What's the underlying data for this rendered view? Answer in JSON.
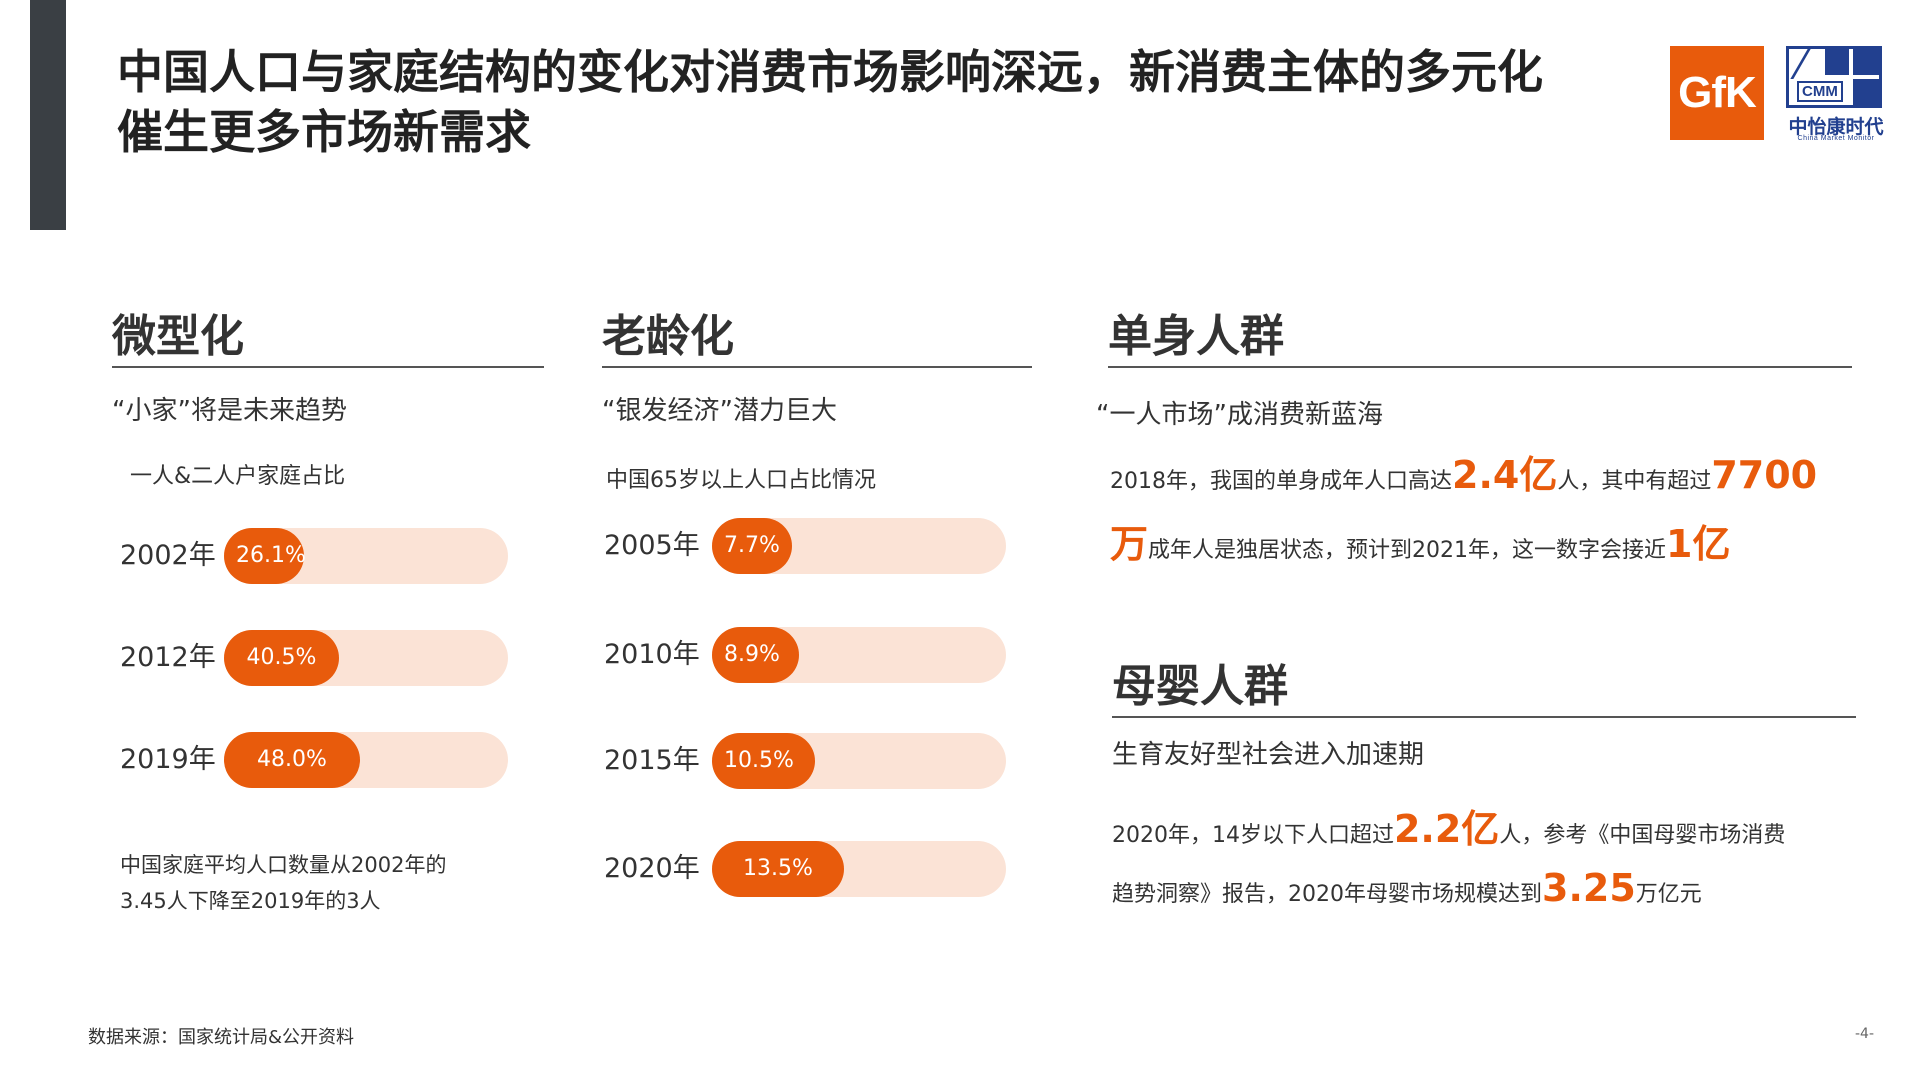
{
  "header": {
    "title_line1": "中国人口与家庭结构的变化对消费市场影响深远，新消费主体的多元化",
    "title_line2": "催生更多市场新需求"
  },
  "logos": {
    "gfk": "GfK",
    "cmm_box": "CMM",
    "cmm_name": "中怡康时代",
    "cmm_en": "China Market Monitor"
  },
  "colors": {
    "accent": "#e85b0c",
    "track": "#fbe3d6",
    "side_bar": "#3a3f44",
    "cmm_blue": "#22408f"
  },
  "sections": {
    "miniaturization": {
      "title": "微型化",
      "subtitle": "“小家”将是未来趋势",
      "note_line1": "中国家庭平均人口数量从2002年的",
      "note_line2": "3.45人下降至2019年的3人"
    },
    "aging": {
      "title": "老龄化",
      "subtitle": "“银发经济”潜力巨大"
    },
    "single": {
      "title": "单身人群",
      "subtitle": "“一人市场”成消费新蓝海",
      "l1_a": "2018年，我国的单身成年人口高达",
      "l1_hl1": "2.4亿",
      "l1_b": "人，其中有超过",
      "l1_hl2": "7700",
      "l2_hl": "万",
      "l2_a": "成年人是独居状态，预计到2021年，这一数字会接近",
      "l2_hl2": "1亿"
    },
    "maternal": {
      "title": "母婴人群",
      "subtitle": "生育友好型社会进入加速期",
      "l1_a": "2020年，14岁以下人口超过",
      "l1_hl": "2.2亿",
      "l1_b": "人，参考《中国母婴市场消费",
      "l2_a": "趋势洞察》报告，2020年母婴市场规模达到",
      "l2_hl": "3.25",
      "l2_b": "万亿元"
    }
  },
  "chart_data": [
    {
      "type": "bar",
      "title": "一人&二人户家庭占比",
      "categories": [
        "2002年",
        "2012年",
        "2019年"
      ],
      "values": [
        26.1,
        40.5,
        48.0
      ],
      "labels": [
        "26.1%",
        "40.5%",
        "48.0%"
      ],
      "unit": "%",
      "ylim": [
        0,
        100
      ]
    },
    {
      "type": "bar",
      "title": "中国65岁以上人口占比情况",
      "categories": [
        "2005年",
        "2010年",
        "2015年",
        "2020年"
      ],
      "values": [
        7.7,
        8.9,
        10.5,
        13.5
      ],
      "labels": [
        "7.7%",
        "8.9%",
        "10.5%",
        "13.5%"
      ],
      "unit": "%",
      "ylim": [
        0,
        30
      ]
    }
  ],
  "footer": {
    "source": "数据来源：国家统计局&公开资料",
    "page": "-4-"
  }
}
